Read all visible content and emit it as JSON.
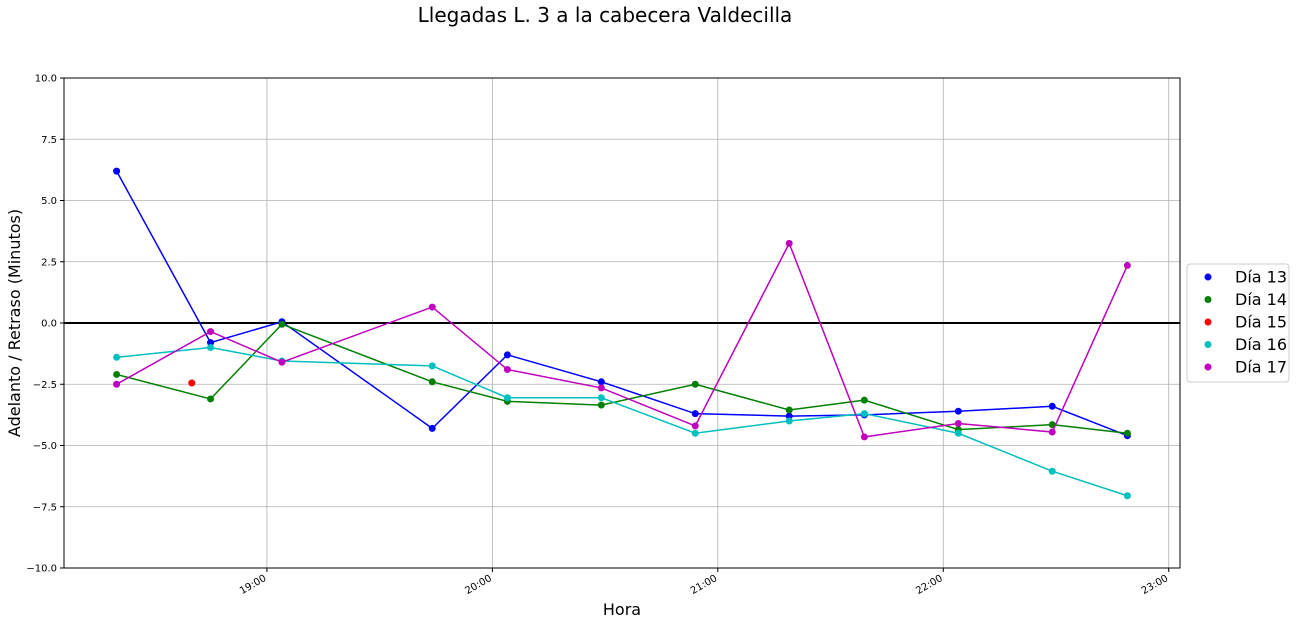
{
  "chart_data": {
    "type": "line",
    "title": "Llegadas L. 3 a la cabecera Valdecilla",
    "xlabel": "Hora",
    "ylabel": "Adelanto / Retraso (Minutos)",
    "x_axis_kind": "time",
    "xlim": [
      "18:06",
      "23:03"
    ],
    "ylim": [
      -10,
      10
    ],
    "x_ticks": [
      "19:00",
      "20:00",
      "21:00",
      "22:00",
      "23:00"
    ],
    "y_ticks": [
      -10.0,
      -7.5,
      -5.0,
      -2.5,
      0.0,
      2.5,
      5.0,
      7.5,
      10.0
    ],
    "y_tick_labels": [
      "−10.0",
      "−7.5",
      "−5.0",
      "−2.5",
      "0.0",
      "2.5",
      "5.0",
      "7.5",
      "10.0"
    ],
    "grid": true,
    "reference_line": {
      "y": 0,
      "color": "#000000"
    },
    "legend_position": "right",
    "series": [
      {
        "name": "Día 13",
        "color": "#0000ff",
        "points": [
          {
            "x": "18:20",
            "y": 6.2
          },
          {
            "x": "18:45",
            "y": -0.8
          },
          {
            "x": "19:04",
            "y": 0.05
          },
          {
            "x": "19:44",
            "y": -4.3
          },
          {
            "x": "20:04",
            "y": -1.3
          },
          {
            "x": "20:29",
            "y": -2.4
          },
          {
            "x": "20:54",
            "y": -3.7
          },
          {
            "x": "21:19",
            "y": -3.8
          },
          {
            "x": "21:39",
            "y": -3.75
          },
          {
            "x": "22:04",
            "y": -3.6
          },
          {
            "x": "22:29",
            "y": -3.4
          },
          {
            "x": "22:49",
            "y": -4.6
          }
        ]
      },
      {
        "name": "Día 14",
        "color": "#008000",
        "points": [
          {
            "x": "18:20",
            "y": -2.1
          },
          {
            "x": "18:45",
            "y": -3.1
          },
          {
            "x": "19:04",
            "y": -0.05
          },
          {
            "x": "19:44",
            "y": -2.4
          },
          {
            "x": "20:04",
            "y": -3.2
          },
          {
            "x": "20:29",
            "y": -3.35
          },
          {
            "x": "20:54",
            "y": -2.5
          },
          {
            "x": "21:19",
            "y": -3.55
          },
          {
            "x": "21:39",
            "y": -3.15
          },
          {
            "x": "22:04",
            "y": -4.35
          },
          {
            "x": "22:29",
            "y": -4.15
          },
          {
            "x": "22:49",
            "y": -4.5
          }
        ]
      },
      {
        "name": "Día 15",
        "color": "#ff0000",
        "points": [
          {
            "x": "18:40",
            "y": -2.45
          }
        ]
      },
      {
        "name": "Día 16",
        "color": "#00bfbf",
        "points": [
          {
            "x": "18:20",
            "y": -1.4
          },
          {
            "x": "18:45",
            "y": -1.0
          },
          {
            "x": "19:04",
            "y": -1.55
          },
          {
            "x": "19:44",
            "y": -1.75
          },
          {
            "x": "20:04",
            "y": -3.05
          },
          {
            "x": "20:29",
            "y": -3.05
          },
          {
            "x": "20:54",
            "y": -4.5
          },
          {
            "x": "21:19",
            "y": -4.0
          },
          {
            "x": "21:39",
            "y": -3.7
          },
          {
            "x": "22:04",
            "y": -4.5
          },
          {
            "x": "22:29",
            "y": -6.05
          },
          {
            "x": "22:49",
            "y": -7.05
          }
        ]
      },
      {
        "name": "Día 17",
        "color": "#bf00bf",
        "points": [
          {
            "x": "18:20",
            "y": -2.5
          },
          {
            "x": "18:45",
            "y": -0.35
          },
          {
            "x": "19:04",
            "y": -1.6
          },
          {
            "x": "19:44",
            "y": 0.65
          },
          {
            "x": "20:04",
            "y": -1.9
          },
          {
            "x": "20:29",
            "y": -2.65
          },
          {
            "x": "20:54",
            "y": -4.2
          },
          {
            "x": "21:19",
            "y": 3.25
          },
          {
            "x": "21:39",
            "y": -4.65
          },
          {
            "x": "22:04",
            "y": -4.1
          },
          {
            "x": "22:29",
            "y": -4.45
          },
          {
            "x": "22:49",
            "y": 2.35
          }
        ]
      }
    ]
  }
}
